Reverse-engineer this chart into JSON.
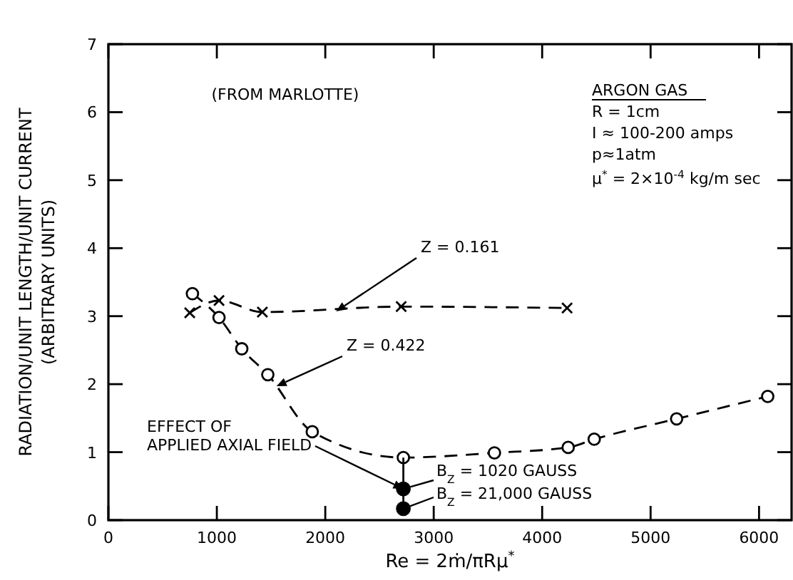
{
  "chart_data": {
    "type": "line",
    "xlabel": "Re = 2ṁ/πRμ$^{*}$",
    "ylabel": "RADIATION/UNIT LENGTH/UNIT CURRENT\n(ARBITRARY UNITS)",
    "xlim": [
      0,
      6300
    ],
    "ylim": [
      0,
      7
    ],
    "xticks": [
      0,
      1000,
      2000,
      3000,
      4000,
      5000,
      6000
    ],
    "yticks": [
      0,
      1,
      2,
      3,
      4,
      5,
      6,
      7
    ],
    "grid": false,
    "series": [
      {
        "color": "#000000",
        "marker": "cross",
        "line_style": "dashed",
        "x": [
          750,
          1020,
          1420,
          2700,
          4230
        ],
        "values": [
          3.05,
          3.23,
          3.06,
          3.14,
          3.12
        ]
      },
      {
        "color": "#000000",
        "marker": "circle",
        "line_style": "dashed",
        "x": [
          775,
          1020,
          1230,
          1470,
          1880,
          2720,
          3560,
          4240,
          4480,
          5240,
          6080
        ],
        "values": [
          3.33,
          2.98,
          2.52,
          2.14,
          1.3,
          0.92,
          0.99,
          1.07,
          1.19,
          1.49,
          1.82
        ]
      },
      {
        "color": "#000000",
        "marker": "none",
        "line_style": "solid",
        "x": [
          2720,
          2720,
          2720
        ],
        "values": [
          0.92,
          0.46,
          0.17
        ]
      },
      {
        "type": "scatter",
        "color": "#000000",
        "marker": "circle",
        "x": [
          2720,
          2720
        ],
        "values": [
          0.46,
          0.17
        ]
      }
    ],
    "annotations": [
      "(FROM MARLOTTE)",
      "ARGON GAS",
      "R = 1cm",
      "I ≈ 100-200 amps",
      "p≈1atm",
      "μ$^{*}$ = 2×10$^{-4}$ kg/m sec",
      {
        "text": "Z = 0.161",
        "x": 2100,
        "y": 3.07
      },
      {
        "text": "Z = 0.422",
        "x": 1550,
        "y": 1.97
      },
      {
        "text": "EFFECT OF\nAPPLIED AXIAL FIELD",
        "x": 2720,
        "y": 0.46
      },
      {
        "text": "B$_{Z}$ = 1020 GAUSS",
        "x": 2720,
        "y": 0.46
      },
      {
        "text": "B$_{Z}$ = 21,000 GAUSS",
        "x": 2720,
        "y": 0.17
      }
    ]
  }
}
